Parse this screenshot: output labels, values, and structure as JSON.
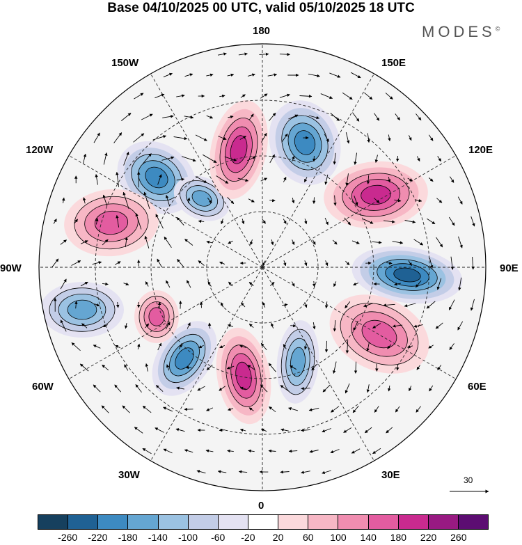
{
  "title": "Base 04/10/2025 00 UTC, valid 05/10/2025 18 UTC",
  "logo": "MODES",
  "logo_mark": "©",
  "longitude_labels": {
    "lon_180": "180",
    "lon_150e": "150E",
    "lon_120e": "120E",
    "lon_90e": "90E",
    "lon_60e": "60E",
    "lon_30e": "30E",
    "lon_0": "0",
    "lon_30w": "30W",
    "lon_60w": "60W",
    "lon_90w": "90W",
    "lon_120w": "120W",
    "lon_150w": "150W"
  },
  "reference_vector_label": "30",
  "colorbar": {
    "colors": [
      "#16405e",
      "#1f6194",
      "#3d8ac1",
      "#65a6d2",
      "#9bc2e2",
      "#c3cde7",
      "#e4e2f2",
      "#ffffff",
      "#fbd9dc",
      "#f7b7c5",
      "#f08db0",
      "#e35ca0",
      "#c92a8f",
      "#981a82",
      "#5c0d72"
    ],
    "ticks": [
      "-260",
      "-220",
      "-180",
      "-140",
      "-100",
      "-60",
      "-20",
      "20",
      "60",
      "100",
      "140",
      "180",
      "220",
      "260"
    ]
  },
  "map_features": {
    "anomaly_centres": [
      {
        "name": "neg-center-1",
        "value": -230
      },
      {
        "name": "neg-center-2",
        "value": -180
      },
      {
        "name": "neg-center-3",
        "value": -200
      },
      {
        "name": "neg-center-4",
        "value": -240
      },
      {
        "name": "neg-center-5",
        "value": -190
      },
      {
        "name": "neg-center-6",
        "value": -200
      },
      {
        "name": "neg-center-7",
        "value": -160
      },
      {
        "name": "pos-center-1",
        "value": 230
      },
      {
        "name": "pos-center-2",
        "value": 200
      },
      {
        "name": "pos-center-3",
        "value": 180
      },
      {
        "name": "pos-center-4",
        "value": 180
      },
      {
        "name": "pos-center-5",
        "value": 160
      },
      {
        "name": "pos-center-6",
        "value": 200
      }
    ]
  }
}
